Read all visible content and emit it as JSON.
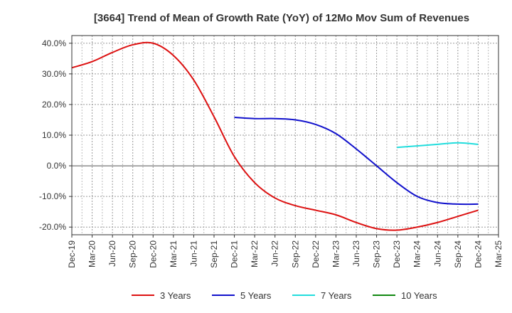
{
  "chart_data": {
    "type": "line",
    "title": "[3664]  Trend of Mean of Growth Rate (YoY) of 12Mo Mov Sum of Revenues",
    "xlabel": "",
    "ylabel": "",
    "ylim": [
      -22.5,
      42.5
    ],
    "y_ticks": [
      40,
      30,
      20,
      10,
      0,
      -10,
      -20
    ],
    "y_tick_labels": [
      "40.0%",
      "30.0%",
      "20.0%",
      "10.0%",
      "0.0%",
      "-10.0%",
      "-20.0%"
    ],
    "x_tick_labels": [
      "Dec-19",
      "Mar-20",
      "Jun-20",
      "Sep-20",
      "Dec-20",
      "Mar-21",
      "Jun-21",
      "Sep-21",
      "Dec-21",
      "Mar-22",
      "Jun-22",
      "Sep-22",
      "Dec-22",
      "Mar-23",
      "Jun-23",
      "Sep-23",
      "Dec-23",
      "Mar-24",
      "Jun-24",
      "Sep-24",
      "Dec-24",
      "Mar-25"
    ],
    "grid": true,
    "legend_position": "bottom",
    "series": [
      {
        "name": "3 Years",
        "color": "#dd1111",
        "points": [
          [
            0,
            32
          ],
          [
            1,
            34
          ],
          [
            2,
            37
          ],
          [
            3,
            39.5
          ],
          [
            4,
            40
          ],
          [
            5,
            36
          ],
          [
            6,
            28
          ],
          [
            7,
            16
          ],
          [
            8,
            3
          ],
          [
            9,
            -5.5
          ],
          [
            10,
            -10.5
          ],
          [
            11,
            -13
          ],
          [
            12,
            -14.5
          ],
          [
            13,
            -16
          ],
          [
            14,
            -18.5
          ],
          [
            15,
            -20.5
          ],
          [
            16,
            -21
          ],
          [
            17,
            -20
          ],
          [
            18,
            -18.5
          ],
          [
            19,
            -16.5
          ],
          [
            20,
            -14.5
          ]
        ]
      },
      {
        "name": "5 Years",
        "color": "#1111cc",
        "points": [
          [
            8,
            15.8
          ],
          [
            9,
            15.4
          ],
          [
            10,
            15.4
          ],
          [
            11,
            15.0
          ],
          [
            12,
            13.5
          ],
          [
            13,
            10.5
          ],
          [
            14,
            5.5
          ],
          [
            15,
            0
          ],
          [
            16,
            -5.5
          ],
          [
            17,
            -10
          ],
          [
            18,
            -12
          ],
          [
            19,
            -12.5
          ],
          [
            20,
            -12.5
          ]
        ]
      },
      {
        "name": "7 Years",
        "color": "#22dddd",
        "points": [
          [
            16,
            6
          ],
          [
            17,
            6.5
          ],
          [
            18,
            7
          ],
          [
            19,
            7.5
          ],
          [
            20,
            7
          ]
        ]
      },
      {
        "name": "10 Years",
        "color": "#118811",
        "points": []
      }
    ]
  }
}
